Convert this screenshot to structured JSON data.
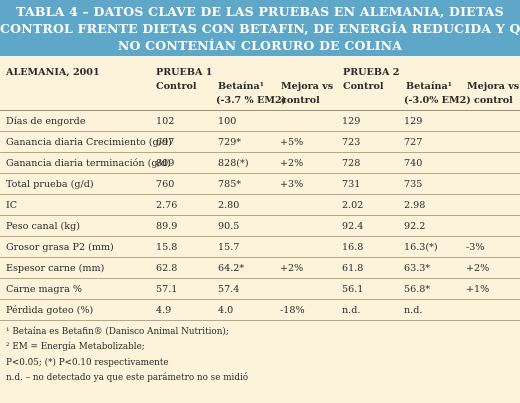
{
  "title": {
    "line1": "TABLA 4 – DATOS CLAVE DE LAS PRUEBAS EN ALEMANIA, DIETAS",
    "line2": "CONTROL FRENTE DIETAS CON BETAFIN, DE ENERGÍA REDUCIDA Y QUE",
    "line3": "NO CONTENÍAN CLORURO DE COLINA"
  },
  "header": {
    "country": "ALEMANIA, 2001",
    "trial1": "PRUEBA 1",
    "trial2": "PRUEBA 2",
    "control1": "Control",
    "betaina1": "Betaína¹",
    "betaina1_sub": "(-3.7 % EM2)",
    "mejora1_a": "Mejora vs",
    "mejora1_b": "control",
    "control2": "Control",
    "betaina2": "Betaína¹",
    "betaina2_sub": "(-3.0% EM2)",
    "mejora2_a": "Mejora vs",
    "mejora2_b": "control"
  },
  "rows": [
    {
      "label": "Días de engorde",
      "c1": "102",
      "b1": "100",
      "m1": "",
      "c2": "129",
      "b2": "129",
      "m2": ""
    },
    {
      "label": "Ganancia diaria Crecimiento (g/d)",
      "c1": "697",
      "b1": "729*",
      "m1": "+5%",
      "c2": "723",
      "b2": "727",
      "m2": ""
    },
    {
      "label": "Ganancia diaria terminación (g/d)",
      "c1": "809",
      "b1": "828(*)",
      "m1": "+2%",
      "c2": "728",
      "b2": "740",
      "m2": ""
    },
    {
      "label": "Total prueba (g/d)",
      "c1": "760",
      "b1": "785*",
      "m1": "+3%",
      "c2": "731",
      "b2": "735",
      "m2": ""
    },
    {
      "label": "IC",
      "c1": "2.76",
      "b1": "2.80",
      "m1": "",
      "c2": "2.02",
      "b2": "2.98",
      "m2": ""
    },
    {
      "label": "Peso canal (kg)",
      "c1": "89.9",
      "b1": "90.5",
      "m1": "",
      "c2": "92.4",
      "b2": "92.2",
      "m2": ""
    },
    {
      "label": "Grosor grasa P2 (mm)",
      "c1": "15.8",
      "b1": "15.7",
      "m1": "",
      "c2": "16.8",
      "b2": "16.3(*)",
      "m2": "-3%"
    },
    {
      "label": "Espesor carne (mm)",
      "c1": "62.8",
      "b1": "64.2*",
      "m1": "+2%",
      "c2": "61.8",
      "b2": "63.3*",
      "m2": "+2%"
    },
    {
      "label": "Carne magra %",
      "c1": "57.1",
      "b1": "57.4",
      "m1": "",
      "c2": "56.1",
      "b2": "56.8*",
      "m2": "+1%"
    },
    {
      "label": "Pérdida goteo (%)",
      "c1": "4.9",
      "b1": "4.0",
      "m1": "-18%",
      "c2": "n.d.",
      "b2": "n.d.",
      "m2": ""
    }
  ],
  "notes": [
    "¹ Betaína es Betafin® (Danisco Animal Nutrition);",
    "² EM = Energía Metabolizable;",
    "P<0.05; (*) P<0.10 respectivamente",
    "n.d. – no detectado ya que este parámetro no se midió"
  ]
}
